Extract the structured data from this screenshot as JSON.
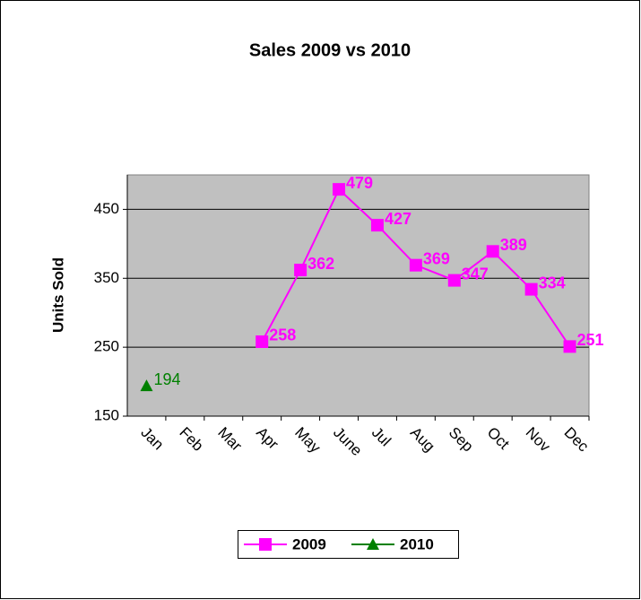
{
  "chart_data": {
    "type": "line",
    "title": "Sales 2009 vs 2010",
    "ylabel": "Units Sold",
    "categories": [
      "Jan",
      "Feb",
      "Mar",
      "Apr",
      "May",
      "June",
      "Jul",
      "Aug",
      "Sep",
      "Oct",
      "Nov",
      "Dec"
    ],
    "series": [
      {
        "name": "2009",
        "color": "#ff00ff",
        "marker": "square",
        "values": [
          null,
          null,
          null,
          258,
          362,
          479,
          427,
          369,
          347,
          389,
          334,
          251
        ]
      },
      {
        "name": "2010",
        "color": "#008000",
        "marker": "triangle",
        "values": [
          194,
          null,
          null,
          null,
          null,
          null,
          null,
          null,
          null,
          null,
          null,
          null
        ]
      }
    ],
    "ylim": [
      150,
      500
    ],
    "yticks": [
      150,
      250,
      350,
      450
    ],
    "grid": true,
    "legend": "bottom"
  }
}
